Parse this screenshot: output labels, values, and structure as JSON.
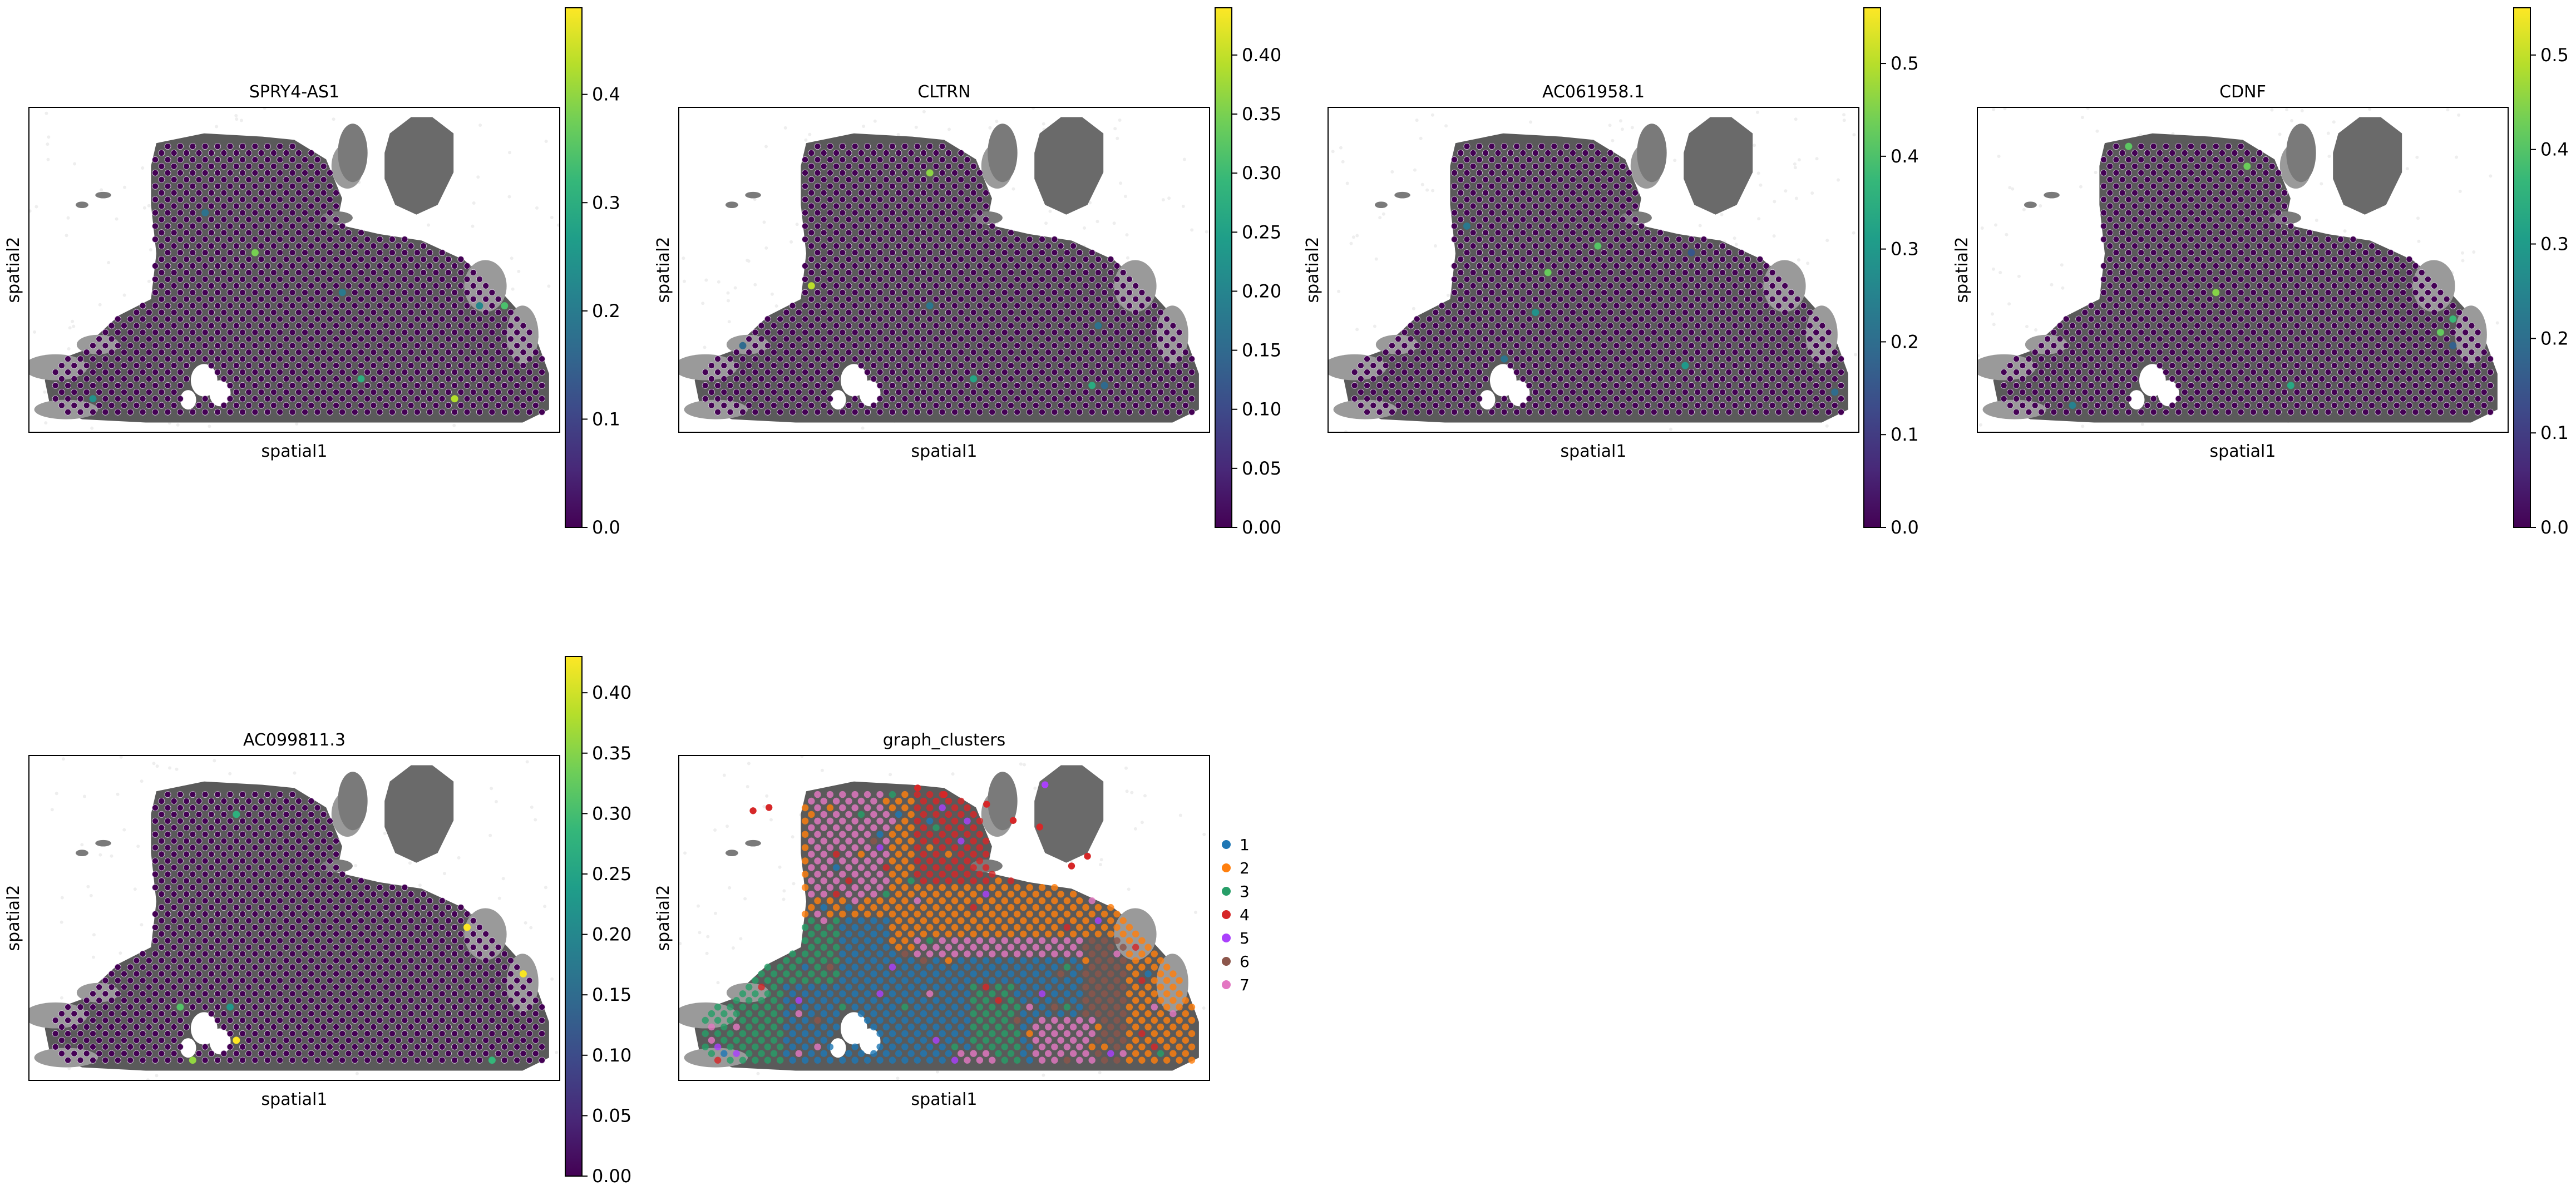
{
  "figure": {
    "panels": [
      {
        "title": "SPRY4-AS1",
        "xlabel": "spatial1",
        "ylabel": "spatial2",
        "kind": "continuous",
        "colorbar": {
          "ticks": [
            "0.0",
            "0.1",
            "0.2",
            "0.3",
            "0.4"
          ],
          "tick_values": [
            0,
            0.1,
            0.2,
            0.3,
            0.4
          ],
          "max": 0.48
        }
      },
      {
        "title": "CLTRN",
        "xlabel": "spatial1",
        "ylabel": "spatial2",
        "kind": "continuous",
        "colorbar": {
          "ticks": [
            "0.00",
            "0.05",
            "0.10",
            "0.15",
            "0.20",
            "0.25",
            "0.30",
            "0.35",
            "0.40"
          ],
          "tick_values": [
            0,
            0.05,
            0.1,
            0.15,
            0.2,
            0.25,
            0.3,
            0.35,
            0.4
          ],
          "max": 0.44
        }
      },
      {
        "title": "AC061958.1",
        "xlabel": "spatial1",
        "ylabel": "spatial2",
        "kind": "continuous",
        "colorbar": {
          "ticks": [
            "0.0",
            "0.1",
            "0.2",
            "0.3",
            "0.4",
            "0.5"
          ],
          "tick_values": [
            0,
            0.1,
            0.2,
            0.3,
            0.4,
            0.5
          ],
          "max": 0.56
        }
      },
      {
        "title": "CDNF",
        "xlabel": "spatial1",
        "ylabel": "spatial2",
        "kind": "continuous",
        "colorbar": {
          "ticks": [
            "0.0",
            "0.1",
            "0.2",
            "0.3",
            "0.4",
            "0.5"
          ],
          "tick_values": [
            0,
            0.1,
            0.2,
            0.3,
            0.4,
            0.5
          ],
          "max": 0.55
        }
      },
      {
        "title": "AC099811.3",
        "xlabel": "spatial1",
        "ylabel": "spatial2",
        "kind": "continuous",
        "colorbar": {
          "ticks": [
            "0.00",
            "0.05",
            "0.10",
            "0.15",
            "0.20",
            "0.25",
            "0.30",
            "0.35",
            "0.40"
          ],
          "tick_values": [
            0,
            0.05,
            0.1,
            0.15,
            0.2,
            0.25,
            0.3,
            0.35,
            0.4
          ],
          "max": 0.43
        }
      },
      {
        "title": "graph_clusters",
        "xlabel": "spatial1",
        "ylabel": "spatial2",
        "kind": "categorical",
        "legend": {
          "placement": "right",
          "entries": [
            {
              "label": "1",
              "color": "#1f77b4"
            },
            {
              "label": "2",
              "color": "#ff7f0e"
            },
            {
              "label": "3",
              "color": "#279e68"
            },
            {
              "label": "4",
              "color": "#d62728"
            },
            {
              "label": "5",
              "color": "#aa40fc"
            },
            {
              "label": "6",
              "color": "#8c564b"
            },
            {
              "label": "7",
              "color": "#e377c2"
            }
          ]
        }
      }
    ]
  },
  "chart_data": [
    {
      "type": "scatter",
      "title": "SPRY4-AS1",
      "xlabel": "spatial1",
      "ylabel": "spatial2",
      "colorscale": "viridis",
      "color_range": [
        0,
        0.48
      ],
      "grid": false
    },
    {
      "type": "scatter",
      "title": "CLTRN",
      "xlabel": "spatial1",
      "ylabel": "spatial2",
      "colorscale": "viridis",
      "color_range": [
        0,
        0.44
      ],
      "grid": false
    },
    {
      "type": "scatter",
      "title": "AC061958.1",
      "xlabel": "spatial1",
      "ylabel": "spatial2",
      "colorscale": "viridis",
      "color_range": [
        0,
        0.56
      ],
      "grid": false
    },
    {
      "type": "scatter",
      "title": "CDNF",
      "xlabel": "spatial1",
      "ylabel": "spatial2",
      "colorscale": "viridis",
      "color_range": [
        0,
        0.55
      ],
      "grid": false
    },
    {
      "type": "scatter",
      "title": "AC099811.3",
      "xlabel": "spatial1",
      "ylabel": "spatial2",
      "colorscale": "viridis",
      "color_range": [
        0,
        0.43
      ],
      "grid": false
    },
    {
      "type": "scatter",
      "title": "graph_clusters",
      "xlabel": "spatial1",
      "ylabel": "spatial2",
      "categories": [
        "1",
        "2",
        "3",
        "4",
        "5",
        "6",
        "7"
      ],
      "legend": "right",
      "grid": false
    }
  ],
  "colors": {
    "viridis": [
      "#440154",
      "#482878",
      "#3e4989",
      "#31688e",
      "#26828e",
      "#1f9e89",
      "#35b779",
      "#6ece58",
      "#b5de2b",
      "#fde725"
    ],
    "tissue_dark": "#5a5a5a",
    "tissue_light": "#9a9a9a",
    "spot_low": "#440154"
  }
}
